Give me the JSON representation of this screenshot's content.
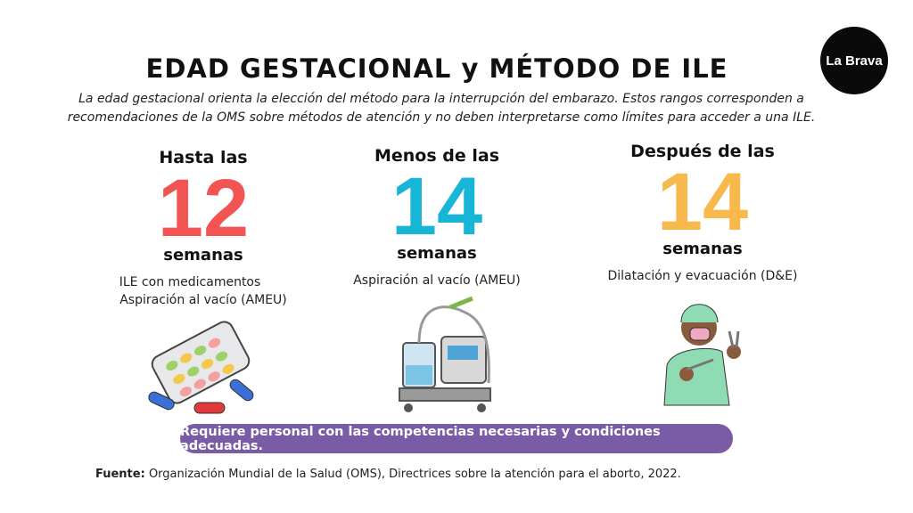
{
  "logo": "La Brava",
  "header": {
    "title": "EDAD GESTACIONAL y MÉTODO DE ILE",
    "subtitle": [
      "La edad gestacional orienta la elección del método para la interrupción del embarazo. Estos rangos corresponden a",
      "recomendaciones de la OMS sobre métodos de atención y no deben interpretarse como límites para acceder a una ILE."
    ]
  },
  "columns": [
    {
      "prefix": "Hasta las",
      "number": "12",
      "unit": "semanas",
      "methods": [
        "ILE con medicamentos",
        "Aspiración al vacío (AMEU)"
      ]
    },
    {
      "prefix": "Menos de las",
      "number": "14",
      "unit": "semanas",
      "methods": [
        "Aspiración al vacío (AMEU)"
      ]
    },
    {
      "prefix": "Después de las",
      "number": "14",
      "unit": "semanas",
      "methods": [
        "Dilatación y evacuación (D&E)"
      ]
    }
  ],
  "banner": "Requiere personal con las competencias necesarias y condiciones adecuadas.",
  "source": {
    "label": "Fuente:",
    "text": "Organización Mundial de la Salud (OMS), Directrices sobre la atención para el aborto, 2022."
  }
}
